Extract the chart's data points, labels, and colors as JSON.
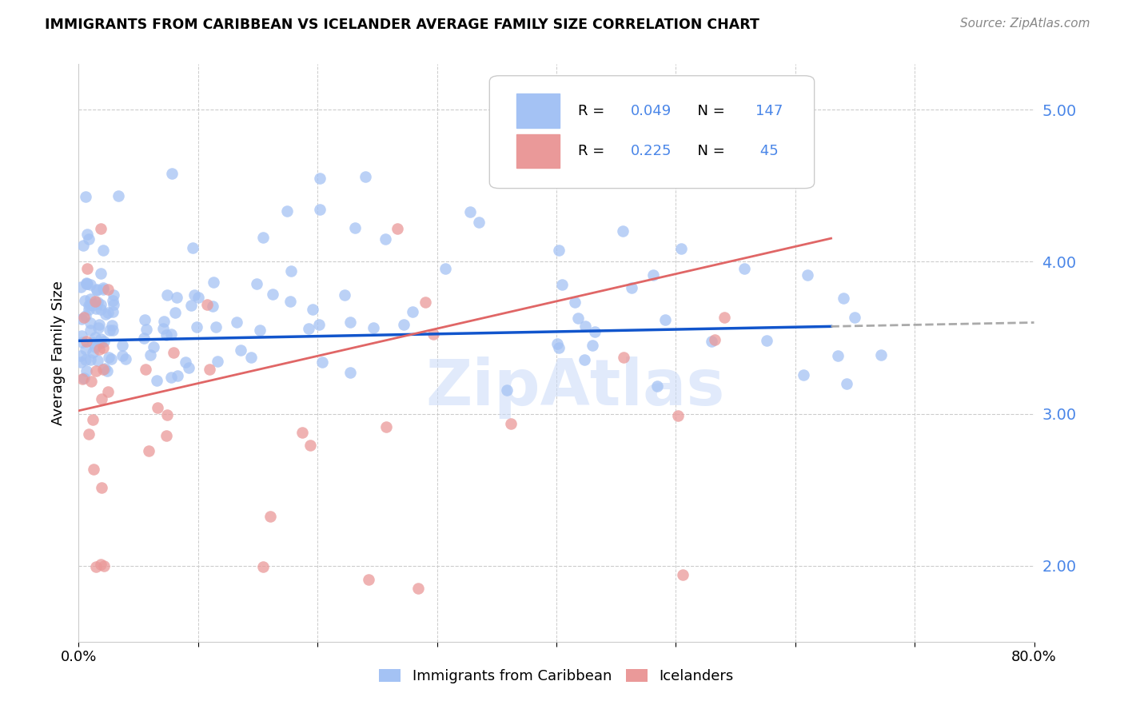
{
  "title": "IMMIGRANTS FROM CARIBBEAN VS ICELANDER AVERAGE FAMILY SIZE CORRELATION CHART",
  "source_text": "Source: ZipAtlas.com",
  "ylabel": "Average Family Size",
  "watermark": "ZipAtlas",
  "xmin": 0.0,
  "xmax": 80.0,
  "ymin": 1.5,
  "ymax": 5.3,
  "yticks": [
    2.0,
    3.0,
    4.0,
    5.0
  ],
  "ytick_labels": [
    "2.00",
    "3.00",
    "4.00",
    "5.00"
  ],
  "blue_R": 0.049,
  "blue_N": 147,
  "pink_R": 0.225,
  "pink_N": 45,
  "blue_color": "#a4c2f4",
  "pink_color": "#ea9999",
  "blue_line_color": "#1155cc",
  "pink_line_color": "#e06666",
  "dashed_line_color": "#aaaaaa",
  "axis_color": "#4a86e8",
  "title_color": "#000000",
  "background_color": "#ffffff",
  "grid_color": "#cccccc",
  "blue_line_slope": 0.0015,
  "blue_line_intercept": 3.48,
  "pink_line_slope": 0.018,
  "pink_line_intercept": 3.02,
  "dashed_line_x_start": 63.0,
  "dashed_line_x_end": 80.0
}
